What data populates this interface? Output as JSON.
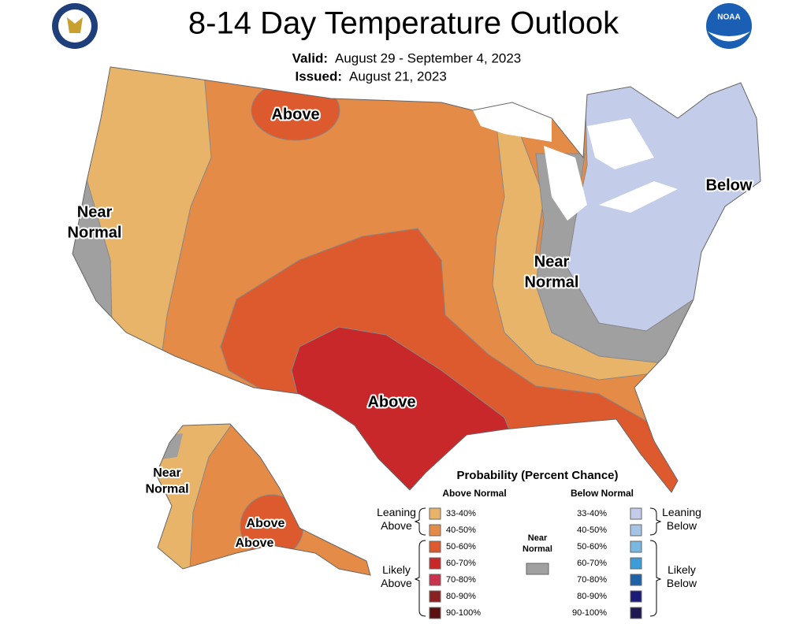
{
  "header": {
    "title": "8-14 Day Temperature Outlook",
    "valid_label": "Valid:",
    "valid": "August 29 - September 4, 2023",
    "issued_label": "Issued:",
    "issued": "August 21, 2023",
    "logo_right": "NOAA"
  },
  "map_labels": [
    {
      "lines": [
        "Above"
      ]
    },
    {
      "lines": [
        "Near",
        "Normal"
      ]
    },
    {
      "lines": [
        "Near",
        "Normal"
      ]
    },
    {
      "lines": [
        "Below"
      ]
    },
    {
      "lines": [
        "Above"
      ]
    },
    {
      "lines": [
        "Near",
        "Normal"
      ]
    },
    {
      "lines": [
        "Above"
      ]
    },
    {
      "lines": [
        "Above"
      ]
    }
  ],
  "legend": {
    "title": "Probability (Percent Chance)",
    "above_heading": "Above Normal",
    "below_heading": "Below Normal",
    "near": {
      "lines": [
        "Near",
        "Normal"
      ],
      "color": "#a0a0a0"
    },
    "above": [
      {
        "label": "33-40%",
        "color": "#e8b46a"
      },
      {
        "label": "40-50%",
        "color": "#e38b47"
      },
      {
        "label": "50-60%",
        "color": "#dc5a2e"
      },
      {
        "label": "60-70%",
        "color": "#c8282a"
      },
      {
        "label": "70-80%",
        "color": "#c9334f"
      },
      {
        "label": "80-90%",
        "color": "#8b2020"
      },
      {
        "label": "90-100%",
        "color": "#5a1010"
      }
    ],
    "below": [
      {
        "label": "33-40%",
        "color": "#c3cde9"
      },
      {
        "label": "40-50%",
        "color": "#a6c4e6"
      },
      {
        "label": "50-60%",
        "color": "#7ab8e2"
      },
      {
        "label": "60-70%",
        "color": "#3d9dd9"
      },
      {
        "label": "70-80%",
        "color": "#1e62a8"
      },
      {
        "label": "80-90%",
        "color": "#1c1c78"
      },
      {
        "label": "90-100%",
        "color": "#201850"
      }
    ],
    "groups": [
      {
        "lines": [
          "Leaning",
          "Above"
        ]
      },
      {
        "lines": [
          "Likely",
          "Above"
        ]
      },
      {
        "lines": [
          "Leaning",
          "Below"
        ]
      },
      {
        "lines": [
          "Likely",
          "Below"
        ]
      }
    ]
  }
}
